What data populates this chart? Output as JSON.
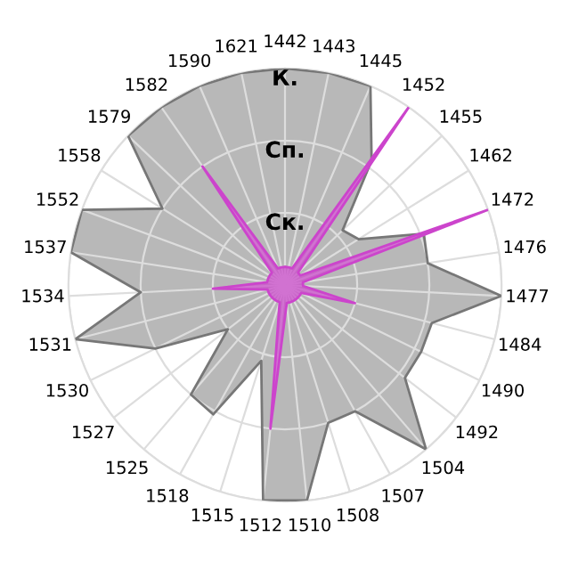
{
  "chart_data": {
    "type": "radar",
    "categories": [
      "1442",
      "1443",
      "1445",
      "1452",
      "1455",
      "1462",
      "1472",
      "1476",
      "1477",
      "1484",
      "1490",
      "1492",
      "1504",
      "1507",
      "1508",
      "1510",
      "1512",
      "1515",
      "1518",
      "1525",
      "1527",
      "1530",
      "1531",
      "1534",
      "1537",
      "1552",
      "1558",
      "1579",
      "1582",
      "1590",
      "1621"
    ],
    "series": [
      {
        "color": "#b8b8b8",
        "values": [
          3,
          3,
          3,
          2.1,
          1.1,
          1.2,
          2.05,
          2,
          3,
          2.1,
          2.1,
          2.1,
          3,
          2,
          2,
          3,
          3,
          1.1,
          2.05,
          2,
          1,
          2,
          3,
          2,
          3,
          3,
          2,
          3,
          3,
          3,
          3
        ]
      },
      {
        "color": "#cc44cc",
        "values": [
          0.25,
          0.25,
          0.25,
          3,
          0.25,
          0.25,
          3,
          0.25,
          0.25,
          1,
          0.25,
          0.25,
          0.25,
          0.25,
          0.25,
          0.25,
          2,
          0.25,
          0.25,
          0.25,
          0.25,
          0.25,
          0.25,
          1,
          0.25,
          0.25,
          0.25,
          0.25,
          2,
          0.25,
          0.25
        ]
      }
    ],
    "ylim": [
      0,
      3
    ],
    "yticks": [
      {
        "value": 1,
        "label": "Ск."
      },
      {
        "value": 2,
        "label": "Сп."
      },
      {
        "value": 3,
        "label": "К."
      }
    ],
    "grid": true
  }
}
